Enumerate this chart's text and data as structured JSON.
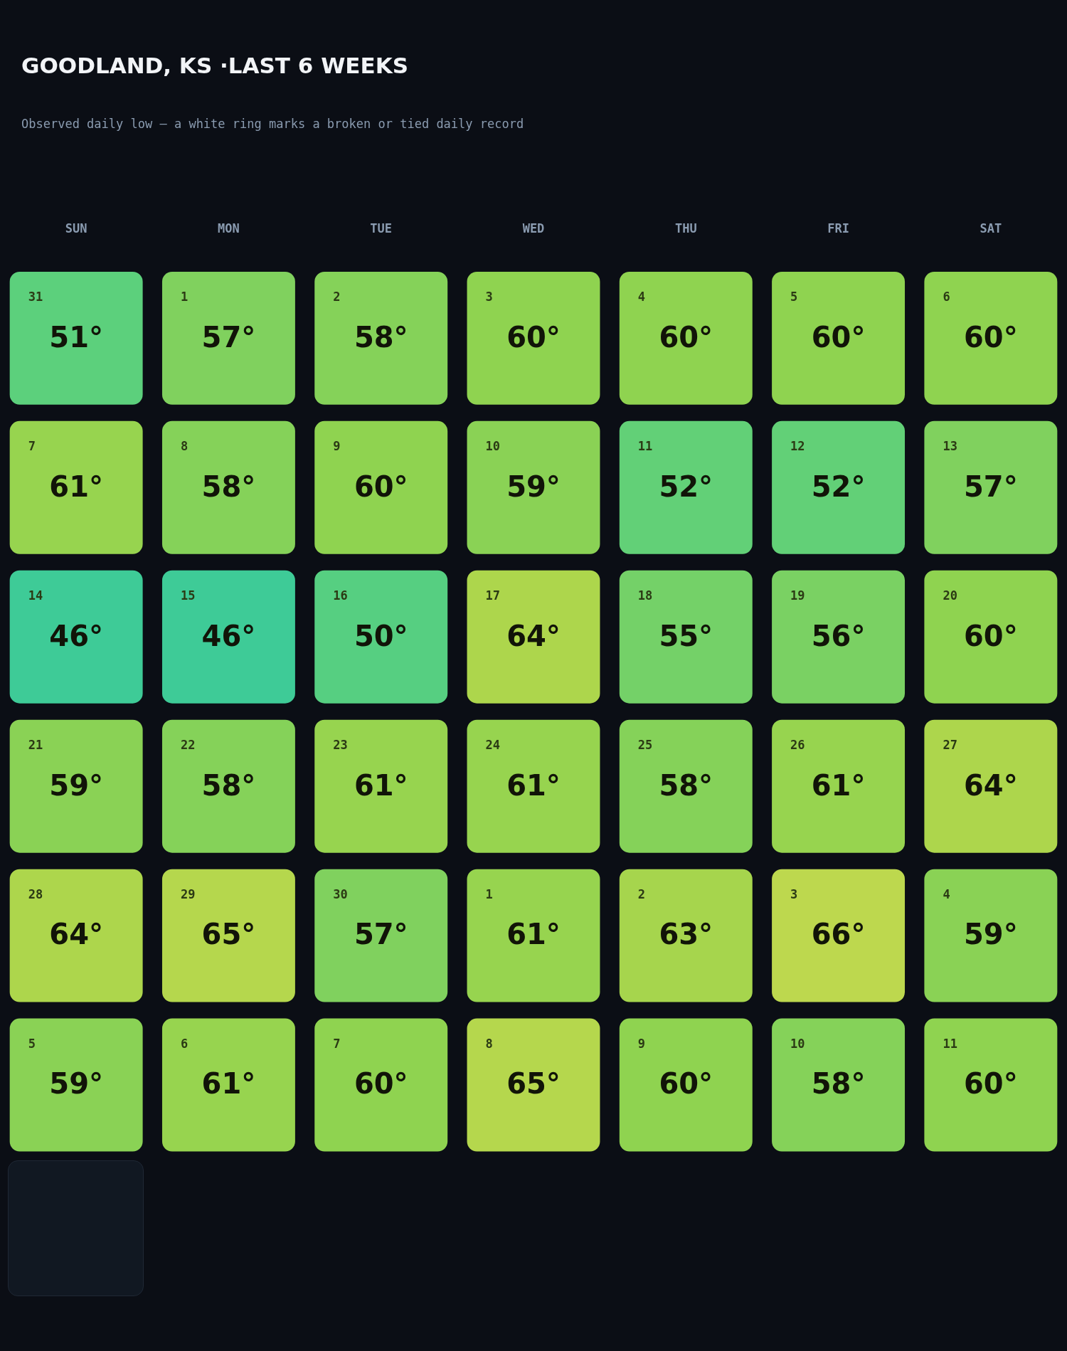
{
  "chart_data": {
    "type": "heatmap",
    "title": "GOODLAND, KS ·LAST 6 WEEKS",
    "subtitle": "Observed daily low — a white ring marks a broken or tied daily record",
    "categories": [
      "SUN",
      "MON",
      "TUE",
      "WED",
      "THU",
      "FRI",
      "SAT"
    ],
    "y_categories": [
      null,
      null,
      null,
      null,
      null,
      null
    ],
    "cells": [
      [
        51,
        57,
        58,
        60,
        60,
        60,
        60
      ],
      [
        61,
        58,
        60,
        59,
        52,
        52,
        57
      ],
      [
        46,
        46,
        50,
        64,
        55,
        56,
        60
      ],
      [
        59,
        58,
        61,
        61,
        58,
        61,
        64
      ],
      [
        64,
        65,
        57,
        61,
        63,
        66,
        59
      ],
      [
        59,
        61,
        60,
        65,
        60,
        58,
        60
      ]
    ],
    "cell_labels": [
      [
        "51°",
        "57°",
        "58°",
        "60°",
        "60°",
        "60°",
        "60°"
      ],
      [
        "61°",
        "58°",
        "60°",
        "59°",
        "52°",
        "52°",
        "57°"
      ],
      [
        "46°",
        "46°",
        "50°",
        "64°",
        "55°",
        "56°",
        "60°"
      ],
      [
        "59°",
        "58°",
        "61°",
        "61°",
        "58°",
        "61°",
        "64°"
      ],
      [
        "64°",
        "65°",
        "57°",
        "61°",
        "63°",
        "66°",
        "59°"
      ],
      [
        "59°",
        "61°",
        "60°",
        "65°",
        "60°",
        "58°",
        "60°"
      ]
    ],
    "annotations": [
      "31",
      "1",
      "2",
      "3",
      "4",
      "5",
      "6",
      "7",
      "8",
      "9",
      "10",
      "11",
      "12",
      "13",
      "14",
      "15",
      "16",
      "17",
      "18",
      "19",
      "20",
      "21",
      "22",
      "23",
      "24",
      "25",
      "26",
      "27",
      "28",
      "29",
      "30",
      "1",
      "2",
      "3",
      "4",
      "5",
      "6",
      "7",
      "8",
      "9",
      "10",
      "11"
    ],
    "tick_labels": "x",
    "grid": false,
    "legend": false
  }
}
